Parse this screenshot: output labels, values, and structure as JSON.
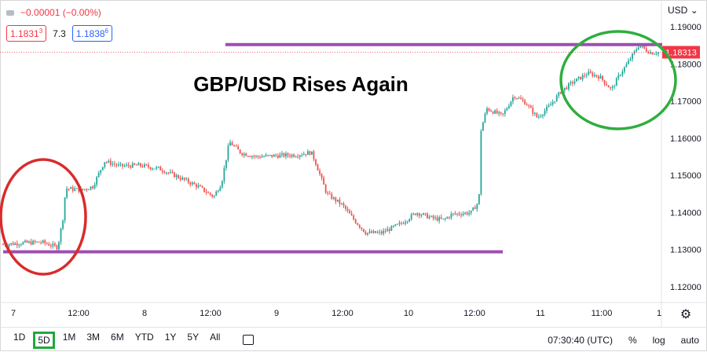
{
  "header": {
    "change": "−0.00001 (−0.00%)",
    "bid_price": "1.1831",
    "bid_price_sup": "3",
    "spread": "7.3",
    "ask_price": "1.1838",
    "ask_price_sup": "6",
    "currency": "USD"
  },
  "footer": {
    "ranges": [
      "1D",
      "5D",
      "1M",
      "3M",
      "6M",
      "YTD",
      "1Y",
      "5Y",
      "All"
    ],
    "selected_range": "5D",
    "time": "07:30:40 (UTC)",
    "percent": "%",
    "log": "log",
    "auto": "auto"
  },
  "colors": {
    "up": "#26a69a",
    "down": "#ef5350",
    "level_line": "#9c4fb1",
    "circle_red": "#d92b2b",
    "circle_green": "#2fae3f",
    "price_label_bg": "#f23645"
  },
  "chart_data": {
    "type": "candlestick",
    "title": "GBP/USD Rises Again",
    "ylim": [
      1.112,
      1.194
    ],
    "y_ticks": [
      "1.19000",
      "1.18000",
      "1.17000",
      "1.16000",
      "1.15000",
      "1.14000",
      "1.13000",
      "1.12000"
    ],
    "x_ticks": [
      "7",
      "12:00",
      "8",
      "12:00",
      "9",
      "12:00",
      "10",
      "12:00",
      "11",
      "11:00",
      "1"
    ],
    "current_price_label": "1.18313",
    "current_price": 1.18313,
    "resistance_level": 1.1852,
    "support_level": 1.1294,
    "price_path": [
      [
        0.0,
        1.1314
      ],
      [
        0.05,
        1.1318
      ],
      [
        0.1,
        1.132
      ],
      [
        0.14,
        1.1306
      ],
      [
        0.155,
        1.1395
      ],
      [
        0.16,
        1.1465
      ],
      [
        0.2,
        1.146
      ],
      [
        0.23,
        1.147
      ],
      [
        0.26,
        1.1538
      ],
      [
        0.3,
        1.1525
      ],
      [
        0.35,
        1.1527
      ],
      [
        0.4,
        1.1518
      ],
      [
        0.45,
        1.1495
      ],
      [
        0.5,
        1.147
      ],
      [
        0.54,
        1.1442
      ],
      [
        0.56,
        1.148
      ],
      [
        0.58,
        1.159
      ],
      [
        0.61,
        1.156
      ],
      [
        0.65,
        1.155
      ],
      [
        0.7,
        1.1553
      ],
      [
        0.75,
        1.1555
      ],
      [
        0.79,
        1.1562
      ],
      [
        0.8,
        1.1538
      ],
      [
        0.83,
        1.145
      ],
      [
        0.87,
        1.142
      ],
      [
        0.9,
        1.138
      ],
      [
        0.93,
        1.1345
      ],
      [
        0.97,
        1.1345
      ],
      [
        1.02,
        1.137
      ],
      [
        1.06,
        1.14
      ],
      [
        1.1,
        1.1385
      ],
      [
        1.13,
        1.138
      ],
      [
        1.15,
        1.1395
      ],
      [
        1.2,
        1.14
      ],
      [
        1.22,
        1.143
      ],
      [
        1.225,
        1.162
      ],
      [
        1.24,
        1.168
      ],
      [
        1.28,
        1.166
      ],
      [
        1.31,
        1.1715
      ],
      [
        1.34,
        1.1695
      ],
      [
        1.37,
        1.1655
      ],
      [
        1.4,
        1.1685
      ],
      [
        1.43,
        1.1725
      ],
      [
        1.46,
        1.175
      ],
      [
        1.5,
        1.1775
      ],
      [
        1.53,
        1.1765
      ],
      [
        1.56,
        1.173
      ],
      [
        1.58,
        1.177
      ],
      [
        1.6,
        1.18
      ],
      [
        1.63,
        1.185
      ],
      [
        1.66,
        1.183
      ],
      [
        1.68,
        1.1831
      ]
    ]
  }
}
